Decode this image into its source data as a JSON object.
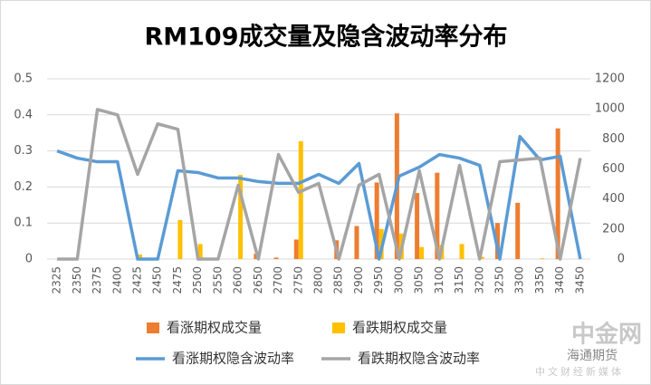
{
  "chart_data": {
    "type": "bar-line",
    "title": "RM109成交量及隐含波动率分布",
    "categories": [
      "2325",
      "2350",
      "2375",
      "2400",
      "2425",
      "2450",
      "2475",
      "2500",
      "2550",
      "2600",
      "2650",
      "2700",
      "2750",
      "2800",
      "2850",
      "2900",
      "2950",
      "3000",
      "3050",
      "3100",
      "3150",
      "3200",
      "3250",
      "3300",
      "3350",
      "3400",
      "3450"
    ],
    "ylim": [
      0,
      0.5
    ],
    "yticks": [
      0,
      0.1,
      0.2,
      0.3,
      0.4,
      0.5
    ],
    "y2lim": [
      0,
      1200
    ],
    "y2ticks": [
      0,
      200,
      400,
      600,
      800,
      1000,
      1200
    ],
    "grid": true,
    "series": [
      {
        "name": "看涨期权成交量",
        "kind": "bar",
        "axis": "y2",
        "color": "#ed7d31",
        "values": [
          0,
          0,
          0,
          0,
          0,
          0,
          0,
          0,
          0,
          0,
          35,
          10,
          130,
          0,
          125,
          220,
          510,
          970,
          440,
          575,
          0,
          0,
          240,
          375,
          0,
          870,
          0
        ]
      },
      {
        "name": "看跌期权成交量",
        "kind": "bar",
        "axis": "y2",
        "color": "#ffc000",
        "values": [
          0,
          0,
          0,
          0,
          30,
          0,
          260,
          100,
          0,
          560,
          0,
          0,
          785,
          0,
          0,
          0,
          200,
          170,
          80,
          95,
          100,
          15,
          0,
          0,
          5,
          0,
          0
        ]
      },
      {
        "name": "看涨期权隐含波动率",
        "kind": "line",
        "axis": "y",
        "color": "#5b9bd5",
        "values": [
          0.3,
          0.28,
          0.27,
          0.27,
          0,
          0,
          0.245,
          0.24,
          0.225,
          0.225,
          0.215,
          0.21,
          0.21,
          0.235,
          0.21,
          0.265,
          0,
          0.23,
          0.255,
          0.29,
          0.28,
          0.26,
          0,
          0.34,
          0.275,
          0.285,
          0
        ]
      },
      {
        "name": "看跌期权隐含波动率",
        "kind": "line",
        "axis": "y",
        "color": "#a5a5a5",
        "values": [
          0,
          0,
          0.415,
          0.4,
          0.235,
          0.375,
          0.36,
          0,
          0,
          0.205,
          0,
          0.29,
          0.185,
          0.21,
          0,
          0.205,
          0.235,
          0,
          0.245,
          0,
          0.26,
          0,
          0.27,
          0.275,
          0.28,
          0,
          0.28
        ]
      }
    ]
  },
  "watermark": {
    "brand": "中金网",
    "partner": "海通期货",
    "slogan": "中文财经新媒体"
  }
}
